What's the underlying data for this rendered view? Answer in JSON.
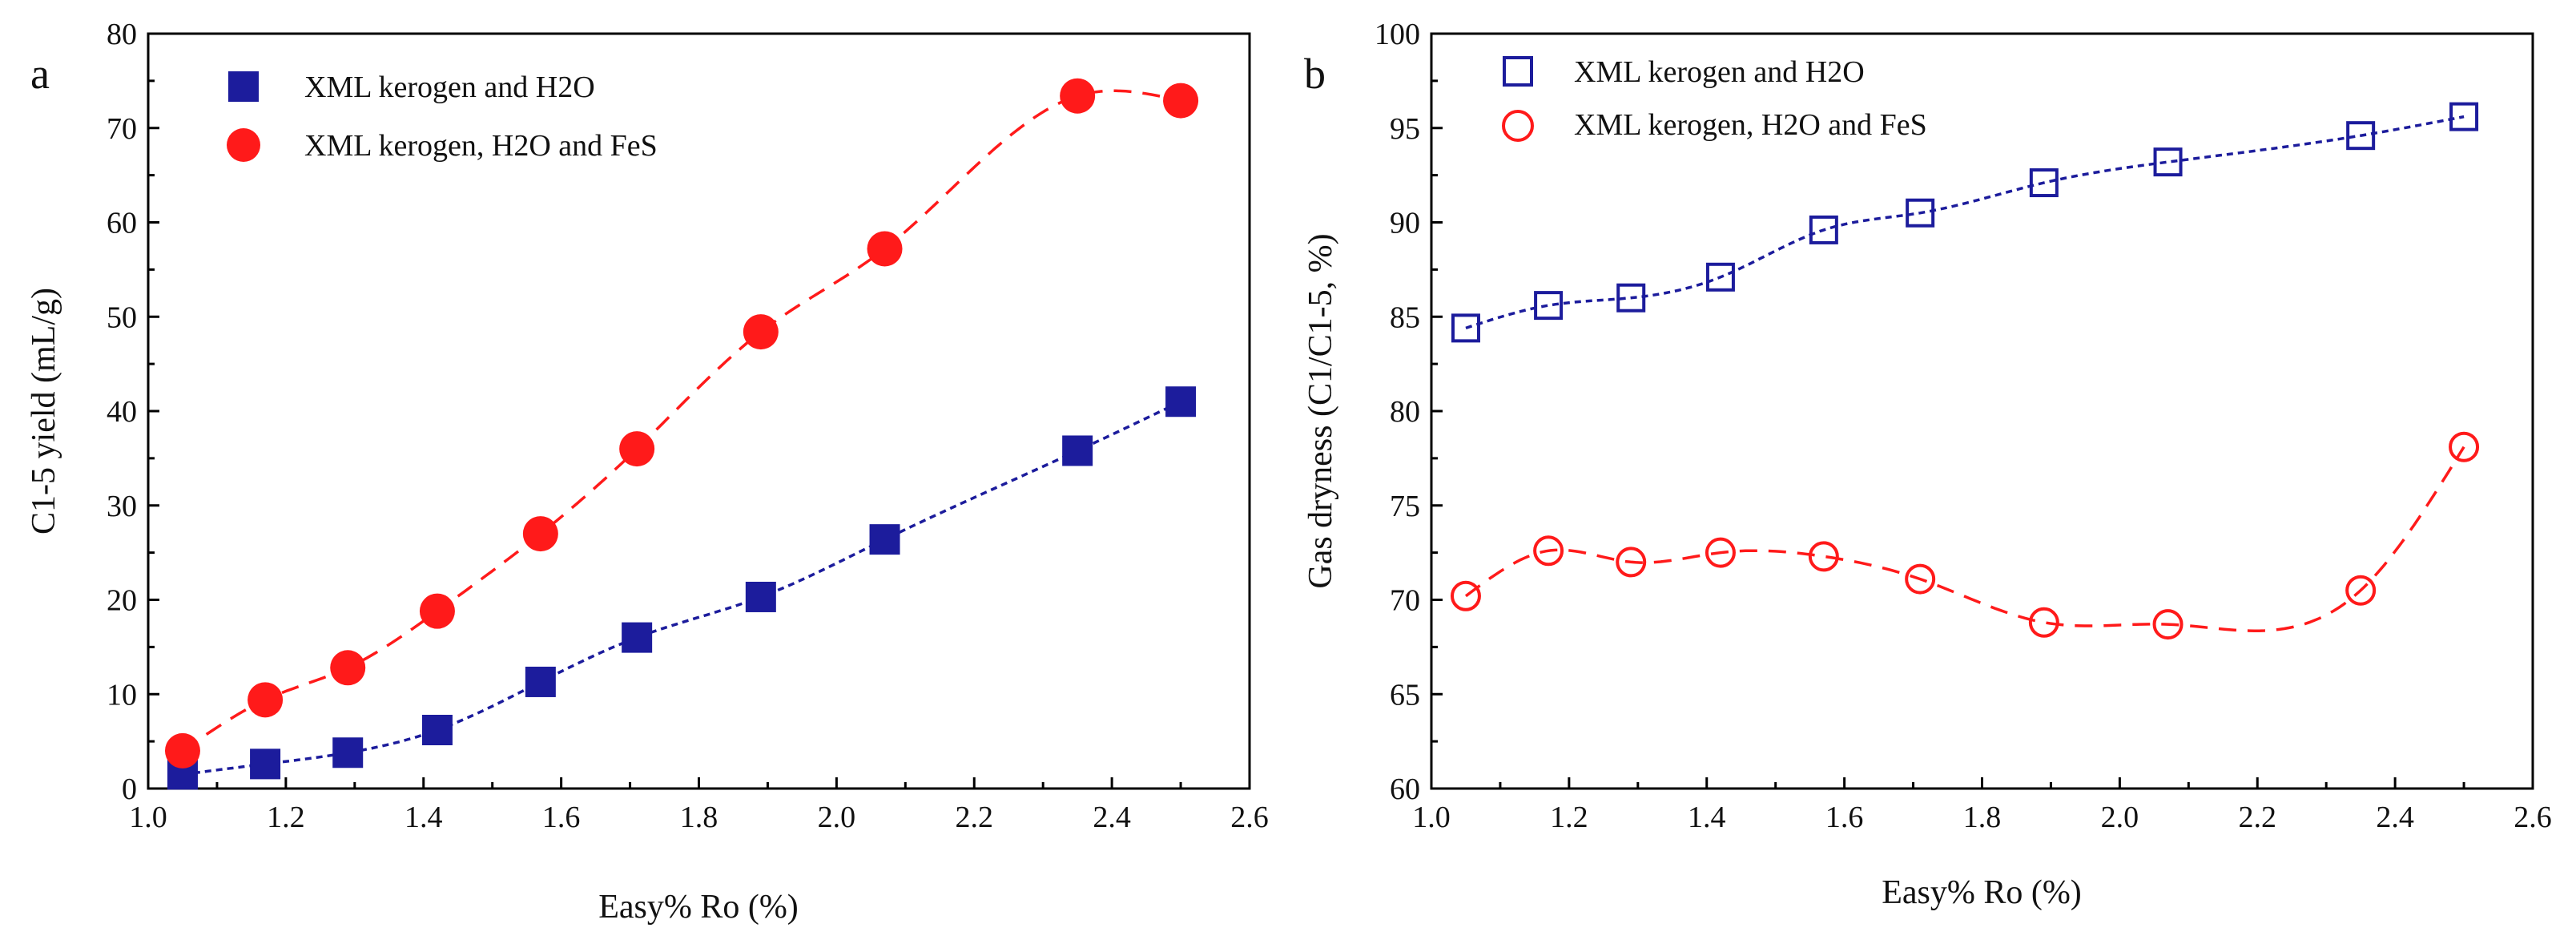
{
  "chart_data": [
    {
      "panel": "a",
      "type": "scatter",
      "title": "",
      "xlabel": "Easy% Ro (%)",
      "ylabel": "C1-5 yield (mL/g)",
      "xlim": [
        1.0,
        2.6
      ],
      "ylim": [
        0,
        80
      ],
      "xticks": [
        "1.0",
        "1.2",
        "1.4",
        "1.6",
        "1.8",
        "2.0",
        "2.2",
        "2.4",
        "2.6"
      ],
      "yticks": [
        "0",
        "10",
        "20",
        "30",
        "40",
        "50",
        "60",
        "70",
        "80"
      ],
      "legend_position": "top-left",
      "grid": false,
      "series": [
        {
          "name": "XML kerogen and H2O",
          "marker": "filled-square",
          "color": "#1c1c9c",
          "fit_line": "dotted",
          "x": [
            1.05,
            1.17,
            1.29,
            1.42,
            1.57,
            1.71,
            1.89,
            2.07,
            2.35,
            2.5
          ],
          "y": [
            1.5,
            2.6,
            3.8,
            6.2,
            11.3,
            16.0,
            20.3,
            26.4,
            35.8,
            41.0
          ]
        },
        {
          "name": "XML kerogen, H2O and FeS",
          "marker": "filled-circle",
          "color": "#ff1a1a",
          "fit_line": "dashed",
          "x": [
            1.05,
            1.17,
            1.29,
            1.42,
            1.57,
            1.71,
            1.89,
            2.07,
            2.35,
            2.5
          ],
          "y": [
            4.0,
            9.4,
            12.8,
            18.8,
            27.0,
            36.0,
            48.4,
            57.2,
            73.4,
            72.9
          ]
        }
      ]
    },
    {
      "panel": "b",
      "type": "scatter",
      "title": "",
      "xlabel": "Easy% Ro (%)",
      "ylabel": "Gas dryness (C1/C1-5, %)",
      "xlim": [
        1.0,
        2.6
      ],
      "ylim": [
        60,
        100
      ],
      "xticks": [
        "1.0",
        "1.2",
        "1.4",
        "1.6",
        "1.8",
        "2.0",
        "2.2",
        "2.4",
        "2.6"
      ],
      "yticks": [
        "60",
        "65",
        "70",
        "75",
        "80",
        "85",
        "90",
        "95",
        "100"
      ],
      "legend_position": "top-left",
      "grid": false,
      "series": [
        {
          "name": "XML kerogen and H2O",
          "marker": "open-square",
          "color": "#1c1c9c",
          "fit_line": "dotted",
          "x": [
            1.05,
            1.17,
            1.29,
            1.42,
            1.57,
            1.71,
            1.89,
            2.07,
            2.35,
            2.5
          ],
          "y": [
            84.4,
            85.6,
            86.0,
            87.1,
            89.6,
            90.5,
            92.1,
            93.2,
            94.6,
            95.6
          ]
        },
        {
          "name": "XML kerogen, H2O and FeS",
          "marker": "open-circle",
          "color": "#ff1a1a",
          "fit_line": "dashed",
          "x": [
            1.05,
            1.17,
            1.29,
            1.42,
            1.57,
            1.71,
            1.89,
            2.07,
            2.35,
            2.5
          ],
          "y": [
            70.2,
            72.6,
            72.0,
            72.5,
            72.3,
            71.1,
            68.8,
            68.7,
            70.5,
            78.1
          ]
        }
      ]
    }
  ]
}
